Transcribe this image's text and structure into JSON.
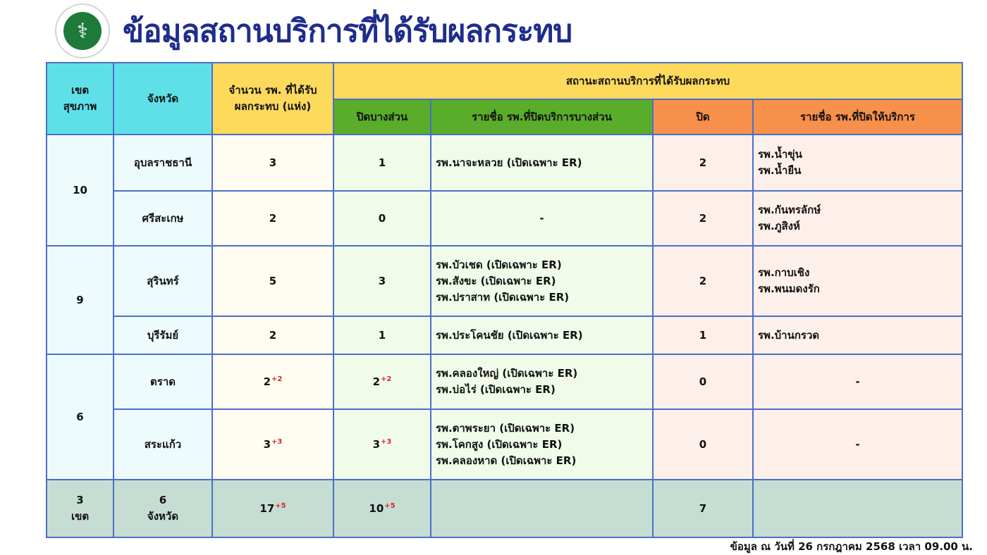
{
  "header": {
    "title": "ข้อมูลสถานบริการที่ได้รับผลกระทบ",
    "logo_text": "กระทรวงสาธารณสุข MINISTRY OF PUBLIC HEALTH"
  },
  "table": {
    "headers": {
      "region": "เขต\nสุขภาพ",
      "province": "จังหวัด",
      "count": "จำนวน รพ. ที่ได้รับ\nผลกระทบ (แห่ง)",
      "status": "สถานะสถานบริการที่ได้รับผลกระทบ",
      "partial": "ปิดบางส่วน",
      "partial_list": "รายชื่อ รพ.ที่ปิดบริการบางส่วน",
      "closed": "ปิด",
      "closed_list": "รายชื่อ รพ.ที่ปิดให้บริการ"
    },
    "regions": [
      {
        "region": "10",
        "provinces": [
          {
            "name": "อุบลราชธานี",
            "count": "3",
            "count_delta": "",
            "partial": "1",
            "partial_delta": "",
            "partial_list": [
              "รพ.นาจะหลวย (เปิดเฉพาะ ER)"
            ],
            "closed": "2",
            "closed_list": [
              "รพ.น้ำขุ่น",
              "รพ.น้ำยืน"
            ]
          },
          {
            "name": "ศรีสะเกษ",
            "count": "2",
            "count_delta": "",
            "partial": "0",
            "partial_delta": "",
            "partial_list": [
              "-"
            ],
            "closed": "2",
            "closed_list": [
              "รพ.กันทรลักษ์",
              "รพ.ภูสิงห์"
            ]
          }
        ]
      },
      {
        "region": "9",
        "provinces": [
          {
            "name": "สุรินทร์",
            "count": "5",
            "count_delta": "",
            "partial": "3",
            "partial_delta": "",
            "partial_list": [
              "รพ.บัวเชด  (เปิดเฉพาะ ER)",
              "รพ.สังขะ (เปิดเฉพาะ ER)",
              "รพ.ปราสาท  (เปิดเฉพาะ ER)"
            ],
            "closed": "2",
            "closed_list": [
              "รพ.กาบเชิง",
              "รพ.พนมดงรัก"
            ]
          },
          {
            "name": "บุรีรัมย์",
            "count": "2",
            "count_delta": "",
            "partial": "1",
            "partial_delta": "",
            "partial_list": [
              "รพ.ประโคนชัย (เปิดเฉพาะ ER)"
            ],
            "closed": "1",
            "closed_list": [
              "รพ.บ้านกรวด"
            ]
          }
        ]
      },
      {
        "region": "6",
        "provinces": [
          {
            "name": "ตราด",
            "count": "2",
            "count_delta": "+2",
            "partial": "2",
            "partial_delta": "+2",
            "partial_list": [
              "รพ.คลองใหญ่ (เปิดเฉพาะ ER)",
              "รพ.บ่อไร่ (เปิดเฉพาะ ER)"
            ],
            "closed": "0",
            "closed_list": [
              "-"
            ]
          },
          {
            "name": "สระแก้ว",
            "count": "3",
            "count_delta": "+3",
            "partial": "3",
            "partial_delta": "+3",
            "partial_list": [
              "รพ.ตาพระยา (เปิดเฉพาะ ER)",
              "รพ.โคกสูง (เปิดเฉพาะ ER)",
              "รพ.คลองหาด (เปิดเฉพาะ ER)"
            ],
            "closed": "0",
            "closed_list": [
              "-"
            ]
          }
        ]
      }
    ],
    "total": {
      "region": "3\nเขต",
      "province": "6\nจังหวัด",
      "count": "17",
      "count_delta": "+5",
      "partial": "10",
      "partial_delta": "+5",
      "closed": "7"
    }
  },
  "footer": {
    "note": "ข้อมูล ณ วันที่ 26 กรกฎาคม 2568 เวลา 09.00 น."
  },
  "colors": {
    "title": "#1f2d8c",
    "header_cyan": "#5fe0e9",
    "header_yellow": "#fdd95c",
    "header_green": "#5aad2a",
    "header_orange": "#f7904b",
    "total_row": "#c6ddd3",
    "delta": "#d3262c",
    "border": "#4a6fc9"
  }
}
